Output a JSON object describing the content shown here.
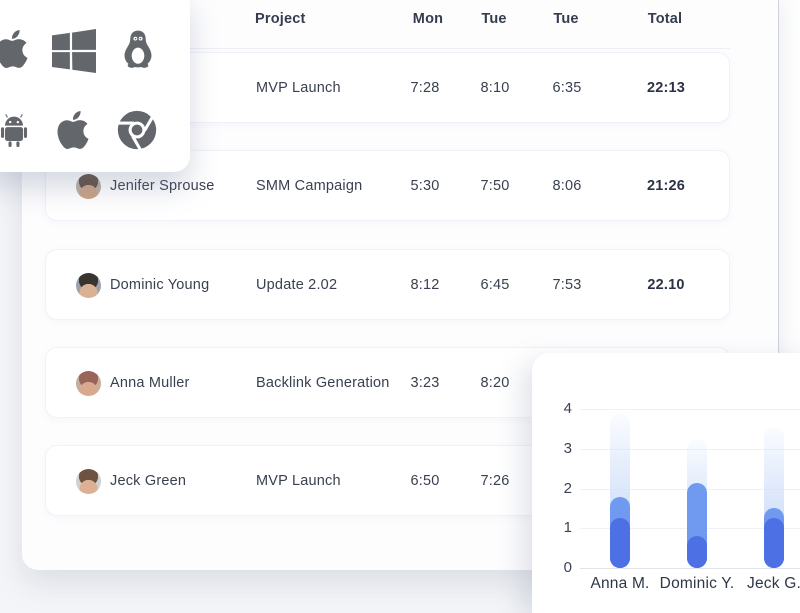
{
  "table": {
    "headers": [
      "Project",
      "Mon",
      "Tue",
      "Tue",
      "Total"
    ],
    "rows": [
      {
        "name": "",
        "project": "MVP Launch",
        "mon": "7:28",
        "tue": "8:10",
        "tue2": "6:35",
        "total": "22:13",
        "avatar": null
      },
      {
        "name": "Jenifer Sprouse",
        "project": "SMM Campaign",
        "mon": "5:30",
        "tue": "7:50",
        "tue2": "8:06",
        "total": "21:26",
        "avatar": {
          "bg": "#b9aca1",
          "hair": "#5f4c41",
          "skin": "#c9a183"
        }
      },
      {
        "name": "Dominic Young",
        "project": "Update 2.02",
        "mon": "8:12",
        "tue": "6:45",
        "tue2": "7:53",
        "total": "22.10",
        "avatar": {
          "bg": "#9aa2ab",
          "hair": "#38342f",
          "skin": "#d9b295"
        }
      },
      {
        "name": "Anna Muller",
        "project": "Backlink Generation",
        "mon": "3:23",
        "tue": "8:20",
        "tue2": "",
        "total": "",
        "avatar": {
          "bg": "#c7ad9e",
          "hair": "#99655a",
          "skin": "#d8a98c"
        }
      },
      {
        "name": "Jeck Green",
        "project": "MVP Launch",
        "mon": "6:50",
        "tue": "7:26",
        "tue2": "",
        "total": "",
        "avatar": {
          "bg": "#ccd2d6",
          "hair": "#6f5340",
          "skin": "#dcb093"
        }
      }
    ]
  },
  "os_panel": {
    "icon_color": "#63676c",
    "icons": [
      "apple-icon",
      "windows-icon",
      "linux-icon",
      "android-icon",
      "apple-icon",
      "chrome-icon"
    ]
  },
  "chart_data": {
    "type": "bar",
    "title": "",
    "categories": [
      "Anna M.",
      "Dominic Y.",
      "Jeck G."
    ],
    "series": [
      {
        "name": "light-blue",
        "color": "#d4e2fa",
        "values": [
          3.9,
          3.25,
          3.55
        ]
      },
      {
        "name": "medium-blue",
        "color": "#6f9aef",
        "values": [
          1.8,
          2.15,
          1.5
        ]
      },
      {
        "name": "dark-blue",
        "color": "#4d71e5",
        "values": [
          1.25,
          0.8,
          1.25
        ]
      }
    ],
    "xlabel": "",
    "ylabel": "",
    "ylim": [
      0,
      4
    ],
    "yticks": [
      0,
      1,
      2,
      3,
      4
    ],
    "grid": true,
    "legend": false
  }
}
